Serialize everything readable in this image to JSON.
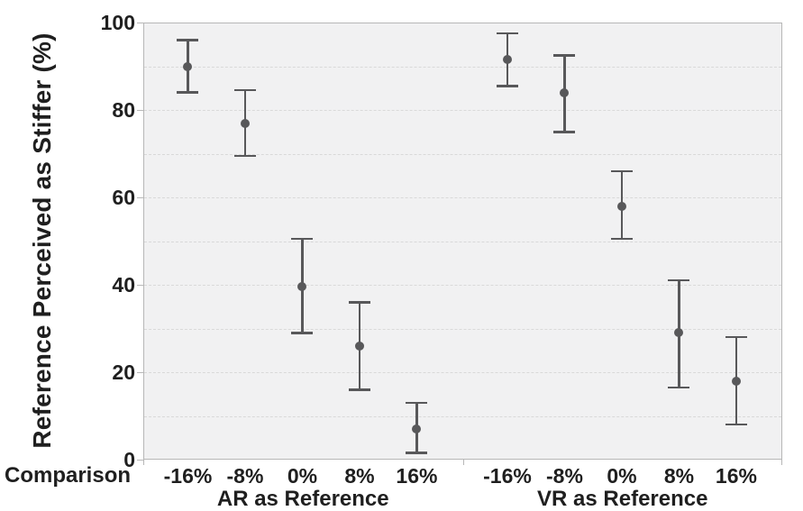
{
  "chart_data": {
    "type": "scatter",
    "subtype": "point-estimates-with-ci-error-bars",
    "title": "",
    "ylabel": "Reference Perceived as Stiffer (%)",
    "xlabel": "Comparison",
    "ylim": [
      0,
      100
    ],
    "ytick_values": [
      0,
      20,
      40,
      60,
      80,
      100
    ],
    "gridline_step": 10,
    "grid": "horizontal dashed every 10",
    "legend_position": "none",
    "categories": [
      "-16%",
      "-8%",
      "0%",
      "8%",
      "16%"
    ],
    "groups": [
      {
        "label": "AR as Reference",
        "mean": [
          90,
          77,
          39.5,
          26,
          7
        ],
        "ci_low": [
          84,
          69.5,
          29,
          16,
          1.5
        ],
        "ci_high": [
          96,
          84.5,
          50.5,
          36,
          13
        ]
      },
      {
        "label": "VR as Reference",
        "mean": [
          91.5,
          84,
          58,
          29,
          18
        ],
        "ci_low": [
          85.5,
          75,
          50.5,
          16.5,
          8
        ],
        "ci_high": [
          97.5,
          92.5,
          66,
          41,
          28
        ]
      }
    ],
    "colors": {
      "marker": "#58585a",
      "error_bar": "#58585a",
      "plot_bg": "#f1f1f2",
      "gridline": "#d9d9d9",
      "axis_line": "#b7b7b7",
      "text": "#1f1f1f",
      "page_bg": "#ffffff"
    }
  }
}
